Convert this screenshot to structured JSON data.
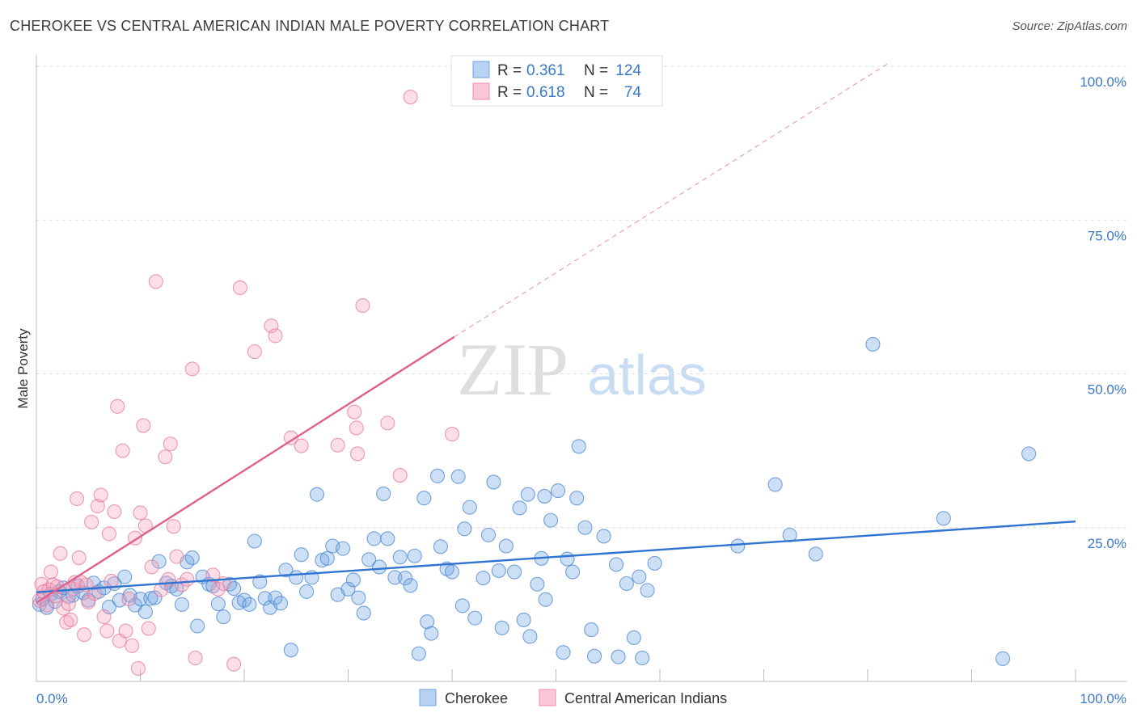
{
  "title": "CHEROKEE VS CENTRAL AMERICAN INDIAN MALE POVERTY CORRELATION CHART",
  "source": "Source: ZipAtlas.com",
  "watermark": {
    "zip": "ZIP",
    "atlas": "atlas"
  },
  "legend_top": [
    {
      "r_label": "R =",
      "r_value": "0.361",
      "n_label": "N =",
      "n_value": "124",
      "color": "#6fa3e0"
    },
    {
      "r_label": "R =",
      "r_value": "0.618",
      "n_label": "N =",
      "n_value": "74",
      "color": "#f08aaa"
    }
  ],
  "legend_bottom": [
    {
      "label": "Cherokee",
      "color": "#6fa3e0"
    },
    {
      "label": "Central American Indians",
      "color": "#f08aaa"
    }
  ],
  "chart_data": {
    "type": "scatter",
    "title": "CHEROKEE VS CENTRAL AMERICAN INDIAN MALE POVERTY CORRELATION CHART",
    "xlabel": "",
    "ylabel": "Male Poverty",
    "xlim": [
      0,
      100
    ],
    "ylim": [
      0,
      100
    ],
    "x_tick_labels": [
      "0.0%",
      "100.0%"
    ],
    "y_ticks": [
      {
        "value": 25,
        "label": "25.0%"
      },
      {
        "value": 50,
        "label": "50.0%"
      },
      {
        "value": 75,
        "label": "75.0%"
      },
      {
        "value": 100,
        "label": "100.0%"
      }
    ],
    "grid": true,
    "legend_position": "top-center",
    "series": [
      {
        "name": "Cherokee",
        "color": "#6fa3e0",
        "stroke": "#4a86d0",
        "trend": {
          "x0": 0,
          "y0": 14.5,
          "x1": 100,
          "y1": 26.0,
          "color": "#2f74d0"
        },
        "points": [
          [
            0.3,
            12.5
          ],
          [
            0.6,
            13.4
          ],
          [
            1.0,
            12.0
          ],
          [
            1.4,
            14.2
          ],
          [
            1.8,
            13.0
          ],
          [
            2.2,
            14.6
          ],
          [
            2.6,
            15.2
          ],
          [
            3.1,
            13.8
          ],
          [
            3.5,
            14.0
          ],
          [
            4.0,
            15.5
          ],
          [
            4.5,
            14.4
          ],
          [
            5.0,
            13.2
          ],
          [
            5.5,
            16.0
          ],
          [
            6.0,
            14.6
          ],
          [
            6.5,
            15.2
          ],
          [
            7.0,
            12.1
          ],
          [
            7.5,
            15.9
          ],
          [
            8.0,
            13.2
          ],
          [
            8.5,
            17.0
          ],
          [
            9.0,
            14.0
          ],
          [
            9.5,
            12.4
          ],
          [
            10.0,
            13.4
          ],
          [
            10.5,
            11.3
          ],
          [
            11.0,
            13.5
          ],
          [
            11.4,
            13.6
          ],
          [
            11.8,
            19.5
          ],
          [
            12.5,
            16.0
          ],
          [
            13.0,
            15.5
          ],
          [
            13.5,
            15.0
          ],
          [
            14.0,
            12.5
          ],
          [
            14.5,
            19.4
          ],
          [
            15.0,
            20.1
          ],
          [
            15.5,
            9.0
          ],
          [
            16.0,
            17.0
          ],
          [
            16.6,
            15.8
          ],
          [
            17.0,
            15.5
          ],
          [
            17.5,
            12.6
          ],
          [
            18.0,
            10.5
          ],
          [
            18.6,
            15.8
          ],
          [
            19.0,
            15.1
          ],
          [
            19.5,
            12.8
          ],
          [
            20.0,
            13.2
          ],
          [
            20.5,
            12.5
          ],
          [
            21.0,
            22.8
          ],
          [
            21.5,
            16.2
          ],
          [
            22.0,
            13.5
          ],
          [
            22.5,
            12.0
          ],
          [
            23.0,
            13.6
          ],
          [
            23.5,
            12.7
          ],
          [
            24.0,
            18.1
          ],
          [
            24.5,
            5.1
          ],
          [
            25.0,
            16.9
          ],
          [
            25.5,
            20.6
          ],
          [
            26.0,
            14.6
          ],
          [
            26.5,
            16.9
          ],
          [
            27.0,
            30.4
          ],
          [
            27.5,
            19.7
          ],
          [
            28.0,
            20.0
          ],
          [
            28.5,
            22.0
          ],
          [
            29.0,
            14.1
          ],
          [
            29.5,
            21.6
          ],
          [
            30.0,
            15.0
          ],
          [
            30.5,
            16.5
          ],
          [
            31.0,
            13.6
          ],
          [
            31.5,
            11.1
          ],
          [
            32.0,
            19.8
          ],
          [
            32.5,
            23.2
          ],
          [
            33.0,
            18.6
          ],
          [
            33.4,
            30.5
          ],
          [
            33.8,
            23.2
          ],
          [
            34.5,
            16.9
          ],
          [
            35.0,
            20.2
          ],
          [
            35.5,
            16.8
          ],
          [
            36.0,
            15.6
          ],
          [
            36.4,
            20.4
          ],
          [
            36.8,
            4.5
          ],
          [
            37.3,
            29.8
          ],
          [
            37.6,
            9.7
          ],
          [
            38.0,
            7.8
          ],
          [
            38.6,
            33.4
          ],
          [
            38.9,
            21.9
          ],
          [
            39.5,
            18.3
          ],
          [
            40.0,
            17.8
          ],
          [
            40.6,
            33.3
          ],
          [
            41.0,
            12.3
          ],
          [
            41.2,
            24.8
          ],
          [
            41.7,
            28.3
          ],
          [
            42.2,
            10.3
          ],
          [
            43.0,
            16.8
          ],
          [
            43.5,
            23.8
          ],
          [
            44.0,
            32.4
          ],
          [
            44.5,
            18.0
          ],
          [
            44.8,
            8.7
          ],
          [
            45.2,
            22.0
          ],
          [
            46.0,
            17.8
          ],
          [
            46.5,
            28.2
          ],
          [
            46.9,
            10.0
          ],
          [
            47.3,
            30.4
          ],
          [
            47.5,
            7.3
          ],
          [
            48.2,
            15.8
          ],
          [
            48.6,
            20.0
          ],
          [
            48.9,
            30.1
          ],
          [
            49.0,
            13.3
          ],
          [
            49.5,
            26.2
          ],
          [
            50.2,
            31.0
          ],
          [
            50.7,
            4.7
          ],
          [
            51.1,
            19.9
          ],
          [
            51.6,
            17.8
          ],
          [
            52.0,
            29.8
          ],
          [
            52.2,
            38.2
          ],
          [
            52.8,
            25.0
          ],
          [
            53.4,
            8.4
          ],
          [
            53.7,
            4.1
          ],
          [
            54.6,
            23.6
          ],
          [
            55.8,
            19.0
          ],
          [
            56.0,
            4.0
          ],
          [
            56.8,
            15.9
          ],
          [
            57.5,
            7.1
          ],
          [
            58.0,
            17.0
          ],
          [
            58.3,
            3.8
          ],
          [
            58.8,
            14.8
          ],
          [
            59.5,
            19.2
          ],
          [
            67.5,
            22.0
          ],
          [
            71.1,
            32.0
          ],
          [
            72.5,
            23.8
          ],
          [
            75.0,
            20.7
          ],
          [
            80.5,
            54.8
          ],
          [
            87.3,
            26.5
          ],
          [
            93.0,
            3.7
          ],
          [
            95.5,
            37.0
          ]
        ]
      },
      {
        "name": "Central American Indians",
        "color": "#f5a0bb",
        "stroke": "#e67a9c",
        "trend": {
          "x0": 0,
          "y0": 12.8,
          "x1": 40.2,
          "y1": 56.0,
          "x_ext": 82,
          "y_ext": 100.5,
          "color": "#e0608a"
        },
        "points": [
          [
            0.3,
            13.2
          ],
          [
            0.5,
            15.8
          ],
          [
            0.7,
            14.6
          ],
          [
            1.0,
            12.4
          ],
          [
            1.2,
            14.9
          ],
          [
            1.4,
            17.8
          ],
          [
            1.6,
            15.7
          ],
          [
            1.8,
            13.9
          ],
          [
            2.0,
            15.4
          ],
          [
            2.3,
            20.8
          ],
          [
            2.6,
            11.9
          ],
          [
            2.9,
            9.6
          ],
          [
            3.1,
            12.6
          ],
          [
            3.3,
            10.0
          ],
          [
            3.5,
            15.0
          ],
          [
            3.7,
            16.1
          ],
          [
            3.9,
            29.7
          ],
          [
            4.1,
            20.1
          ],
          [
            4.3,
            16.1
          ],
          [
            4.6,
            7.6
          ],
          [
            4.8,
            15.7
          ],
          [
            5.0,
            12.9
          ],
          [
            5.3,
            25.9
          ],
          [
            5.6,
            14.3
          ],
          [
            5.9,
            28.5
          ],
          [
            6.2,
            30.3
          ],
          [
            6.5,
            10.5
          ],
          [
            6.8,
            8.2
          ],
          [
            7.0,
            24.0
          ],
          [
            7.2,
            16.3
          ],
          [
            7.5,
            27.6
          ],
          [
            7.8,
            44.7
          ],
          [
            8.0,
            6.6
          ],
          [
            8.3,
            37.5
          ],
          [
            8.6,
            8.2
          ],
          [
            8.9,
            13.4
          ],
          [
            9.2,
            5.8
          ],
          [
            9.5,
            23.3
          ],
          [
            9.8,
            2.1
          ],
          [
            10.0,
            27.4
          ],
          [
            10.3,
            41.6
          ],
          [
            10.5,
            25.3
          ],
          [
            10.8,
            8.6
          ],
          [
            11.1,
            18.6
          ],
          [
            11.5,
            65.0
          ],
          [
            12.0,
            14.9
          ],
          [
            12.4,
            36.5
          ],
          [
            12.7,
            16.6
          ],
          [
            12.9,
            38.6
          ],
          [
            13.2,
            25.2
          ],
          [
            13.5,
            20.3
          ],
          [
            14.0,
            15.7
          ],
          [
            14.5,
            16.6
          ],
          [
            15.0,
            50.8
          ],
          [
            15.3,
            3.8
          ],
          [
            17.0,
            17.3
          ],
          [
            17.5,
            15.0
          ],
          [
            18.0,
            15.9
          ],
          [
            19.0,
            2.8
          ],
          [
            19.6,
            64.0
          ],
          [
            21.0,
            53.6
          ],
          [
            22.6,
            57.8
          ],
          [
            23.0,
            56.2
          ],
          [
            24.5,
            39.6
          ],
          [
            25.5,
            38.3
          ],
          [
            29.0,
            38.4
          ],
          [
            30.6,
            43.8
          ],
          [
            30.8,
            41.2
          ],
          [
            30.9,
            37.0
          ],
          [
            31.4,
            61.1
          ],
          [
            33.8,
            42.0
          ],
          [
            35.0,
            33.5
          ],
          [
            36.0,
            95.0
          ],
          [
            40.0,
            40.2
          ]
        ]
      }
    ]
  }
}
